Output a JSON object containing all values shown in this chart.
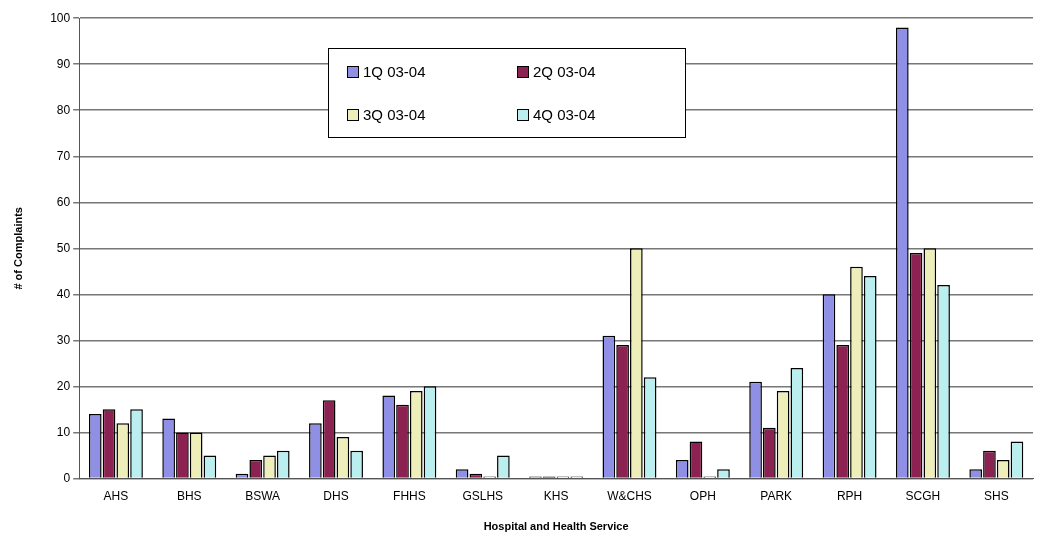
{
  "chart_data": {
    "type": "bar",
    "xlabel": "Hospital and Health Service",
    "ylabel": "# of Complaints",
    "categories": [
      "AHS",
      "BHS",
      "BSWA",
      "DHS",
      "FHHS",
      "GSLHS",
      "KHS",
      "W&CHS",
      "OPH",
      "PARK",
      "RPH",
      "SCGH",
      "SHS"
    ],
    "series": [
      {
        "name": "1Q 03-04",
        "color": "#8f8fe6",
        "values": [
          14,
          13,
          1,
          12,
          18,
          2,
          0,
          31,
          4,
          21,
          40,
          98,
          2
        ]
      },
      {
        "name": "2Q 03-04",
        "color": "#8b2252",
        "values": [
          15,
          10,
          4,
          17,
          16,
          1,
          0,
          29,
          8,
          11,
          29,
          49,
          6
        ]
      },
      {
        "name": "3Q 03-04",
        "color": "#eeeebb",
        "values": [
          12,
          10,
          5,
          9,
          19,
          0,
          0,
          50,
          0,
          19,
          46,
          50,
          4
        ]
      },
      {
        "name": "4Q 03-04",
        "color": "#bbeeee",
        "values": [
          15,
          5,
          6,
          6,
          20,
          5,
          0,
          22,
          2,
          24,
          44,
          42,
          8
        ]
      }
    ],
    "ylim": [
      0,
      100
    ],
    "yticks": [
      0,
      10,
      20,
      30,
      40,
      50,
      60,
      70,
      80,
      90,
      100
    ],
    "grid": "y",
    "legend": "top"
  }
}
